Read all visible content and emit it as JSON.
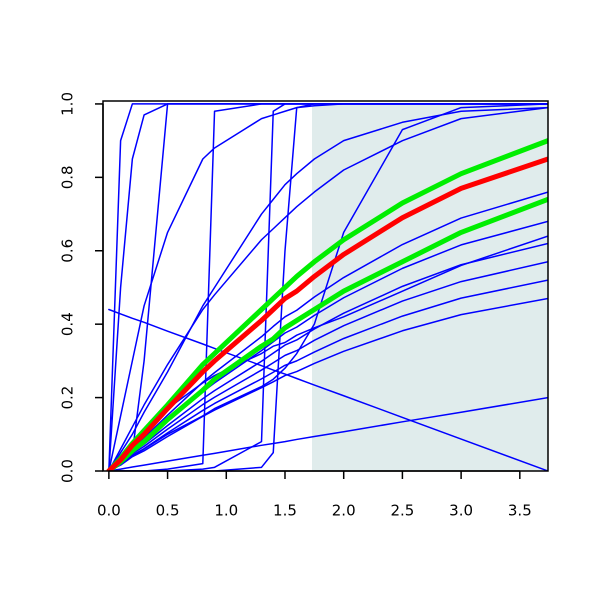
{
  "chart_data": {
    "type": "line",
    "x": [
      0,
      0.1,
      0.2,
      0.3,
      0.5,
      0.8,
      0.9,
      1.3,
      1.4,
      1.5,
      1.6,
      1.75,
      2,
      2.5,
      3,
      3.74
    ],
    "xlim": [
      -0.05,
      3.74
    ],
    "ylim": [
      0,
      1.008
    ],
    "xticks": [
      {
        "value": 0,
        "label": "0.0"
      },
      {
        "value": 0.5,
        "label": "0.5"
      },
      {
        "value": 1,
        "label": "1.0"
      },
      {
        "value": 1.5,
        "label": "1.5"
      },
      {
        "value": 2,
        "label": "2.0"
      },
      {
        "value": 2.5,
        "label": "2.5"
      },
      {
        "value": 3,
        "label": "3.0"
      },
      {
        "value": 3.5,
        "label": "3.5"
      }
    ],
    "yticks": [
      {
        "value": 0,
        "label": "0.0"
      },
      {
        "value": 0.2,
        "label": "0.2"
      },
      {
        "value": 0.4,
        "label": "0.4"
      },
      {
        "value": 0.6,
        "label": "0.6"
      },
      {
        "value": 0.8,
        "label": "0.8"
      },
      {
        "value": 1,
        "label": "1.0"
      }
    ],
    "highlight_x": [
      1.73,
      3.74
    ],
    "highlight_y": [
      0,
      1
    ],
    "highlight_color": "#e0ecec",
    "series": [
      {
        "color": "#0000ff",
        "width": 1.5,
        "values": [
          0,
          0.9,
          1,
          1,
          1,
          1,
          1,
          1,
          1,
          1,
          1,
          1,
          1,
          1,
          1,
          1
        ]
      },
      {
        "color": "#0000ff",
        "width": 1.5,
        "values": [
          0,
          0.5,
          0.85,
          0.97,
          1,
          1,
          1,
          1,
          1,
          1,
          1,
          1,
          1,
          1,
          1,
          1
        ]
      },
      {
        "color": "#0000ff",
        "width": 1.5,
        "values": [
          0,
          0.02,
          0.05,
          0.3,
          1,
          1,
          1,
          1,
          1,
          1,
          1,
          1,
          1,
          1,
          1,
          1
        ]
      },
      {
        "color": "#0000ff",
        "width": 1.5,
        "values": [
          0,
          0.15,
          0.3,
          0.45,
          0.65,
          0.85,
          0.88,
          0.96,
          0.97,
          0.98,
          0.99,
          0.995,
          1,
          1,
          1,
          1
        ]
      },
      {
        "color": "#0000ff",
        "width": 1.5,
        "values": [
          0,
          0.05,
          0.1,
          0.16,
          0.27,
          0.45,
          0.5,
          0.7,
          0.74,
          0.78,
          0.81,
          0.85,
          0.9,
          0.95,
          0.98,
          0.99
        ]
      },
      {
        "color": "#0000ff",
        "width": 1.5,
        "values": [
          0,
          0,
          0,
          0,
          0.005,
          0.02,
          0.98,
          1,
          1,
          1,
          1,
          1,
          1,
          1,
          1,
          1
        ]
      },
      {
        "color": "#0000ff",
        "width": 1.5,
        "values": [
          0,
          0,
          0,
          0,
          0,
          0.005,
          0.01,
          0.08,
          0.98,
          1,
          1,
          1,
          1,
          1,
          1,
          1
        ]
      },
      {
        "color": "#0000ff",
        "width": 1.5,
        "values": [
          0,
          0,
          0,
          0,
          0,
          0,
          0,
          0.01,
          0.05,
          0.6,
          0.99,
          1,
          1,
          1,
          1,
          1
        ]
      },
      {
        "color": "#0000ff",
        "width": 1.5,
        "values": [
          0,
          0.02,
          0.04,
          0.06,
          0.1,
          0.15,
          0.17,
          0.23,
          0.25,
          0.28,
          0.32,
          0.4,
          0.65,
          0.93,
          0.99,
          1
        ]
      },
      {
        "color": "#0000ff",
        "width": 1.5,
        "values": [
          0.44,
          0.428,
          0.416,
          0.405,
          0.381,
          0.346,
          0.334,
          0.287,
          0.275,
          0.264,
          0.252,
          0.234,
          0.205,
          0.146,
          0.087,
          0
        ]
      },
      {
        "color": "#0000ff",
        "width": 1.5,
        "values": [
          0,
          0.005,
          0.011,
          0.016,
          0.027,
          0.043,
          0.048,
          0.07,
          0.075,
          0.08,
          0.086,
          0.094,
          0.107,
          0.134,
          0.16,
          0.2
        ]
      },
      {
        "color": "#0000ff",
        "width": 1.5,
        "values": [
          0,
          0.06,
          0.12,
          0.18,
          0.29,
          0.44,
          0.48,
          0.63,
          0.66,
          0.69,
          0.72,
          0.76,
          0.82,
          0.9,
          0.96,
          0.99
        ]
      },
      {
        "color": "#0000ff",
        "width": 1.5,
        "values": [
          0,
          0.027,
          0.062,
          0.09,
          0.152,
          0.242,
          0.268,
          0.366,
          0.394,
          0.42,
          0.438,
          0.474,
          0.527,
          0.617,
          0.689,
          0.76
        ]
      },
      {
        "color": "#0000ff",
        "width": 1.5,
        "values": [
          0,
          0.024,
          0.056,
          0.08,
          0.136,
          0.216,
          0.24,
          0.328,
          0.352,
          0.376,
          0.392,
          0.424,
          0.472,
          0.552,
          0.616,
          0.68
        ]
      },
      {
        "color": "#0000ff",
        "width": 1.5,
        "values": [
          0,
          0.04,
          0.08,
          0.11,
          0.17,
          0.24,
          0.26,
          0.32,
          0.34,
          0.35,
          0.37,
          0.39,
          0.42,
          0.49,
          0.56,
          0.64
        ]
      },
      {
        "color": "#0000ff",
        "width": 1.5,
        "values": [
          0,
          0.022,
          0.051,
          0.073,
          0.124,
          0.197,
          0.219,
          0.299,
          0.321,
          0.343,
          0.357,
          0.387,
          0.43,
          0.503,
          0.562,
          0.62
        ]
      },
      {
        "color": "#0000ff",
        "width": 1.5,
        "values": [
          0,
          0.02,
          0.047,
          0.067,
          0.114,
          0.181,
          0.201,
          0.275,
          0.295,
          0.315,
          0.328,
          0.356,
          0.396,
          0.463,
          0.516,
          0.57
        ]
      },
      {
        "color": "#0000ff",
        "width": 1.5,
        "values": [
          0,
          0.018,
          0.043,
          0.061,
          0.104,
          0.165,
          0.184,
          0.251,
          0.269,
          0.288,
          0.3,
          0.324,
          0.361,
          0.422,
          0.471,
          0.52
        ]
      },
      {
        "color": "#0000ff",
        "width": 1.5,
        "values": [
          0,
          0.016,
          0.039,
          0.055,
          0.094,
          0.149,
          0.166,
          0.227,
          0.243,
          0.26,
          0.271,
          0.293,
          0.326,
          0.382,
          0.426,
          0.47
        ]
      },
      {
        "color": "#00ee00",
        "width": 5,
        "values": [
          0,
          0.035,
          0.075,
          0.11,
          0.18,
          0.29,
          0.32,
          0.44,
          0.47,
          0.5,
          0.53,
          0.57,
          0.63,
          0.73,
          0.81,
          0.9
        ]
      },
      {
        "color": "#00ee00",
        "width": 5,
        "values": [
          0,
          0.025,
          0.055,
          0.08,
          0.14,
          0.22,
          0.25,
          0.34,
          0.36,
          0.39,
          0.41,
          0.44,
          0.49,
          0.57,
          0.65,
          0.74
        ]
      },
      {
        "color": "#ff0000",
        "width": 5,
        "values": [
          0,
          0.03,
          0.07,
          0.1,
          0.17,
          0.27,
          0.3,
          0.41,
          0.44,
          0.47,
          0.49,
          0.53,
          0.59,
          0.69,
          0.77,
          0.85
        ]
      }
    ]
  }
}
